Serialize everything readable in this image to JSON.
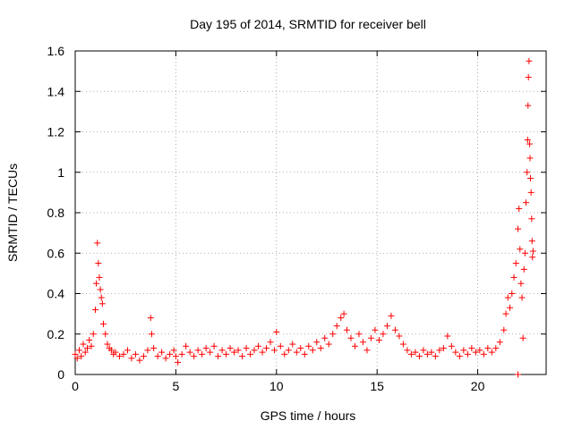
{
  "chart_data": {
    "type": "scatter",
    "title": "Day 195 of 2014, SRMTID for receiver bell",
    "xlabel": "GPS time / hours",
    "ylabel": "SRMTID / TECUs",
    "xlim": [
      0,
      23.4
    ],
    "ylim": [
      0,
      1.6
    ],
    "xticks": [
      0,
      5,
      10,
      15,
      20
    ],
    "xtick_labels": [
      "0",
      "5",
      "10",
      "15",
      "20"
    ],
    "yticks": [
      0,
      0.2,
      0.4,
      0.6,
      0.8,
      1.0,
      1.2,
      1.4,
      1.6
    ],
    "ytick_labels": [
      "0",
      "0.2",
      "0.4",
      "0.6",
      "0.8",
      "1",
      "1.2",
      "1.4",
      "1.6"
    ],
    "grid": true,
    "marker": "+",
    "marker_color": "#ff0000",
    "series": [
      {
        "name": "SRMTID",
        "points": [
          [
            0.0,
            0.1
          ],
          [
            0.1,
            0.08
          ],
          [
            0.2,
            0.12
          ],
          [
            0.3,
            0.09
          ],
          [
            0.4,
            0.15
          ],
          [
            0.5,
            0.11
          ],
          [
            0.6,
            0.13
          ],
          [
            0.7,
            0.17
          ],
          [
            0.8,
            0.14
          ],
          [
            0.9,
            0.2
          ],
          [
            1.0,
            0.32
          ],
          [
            1.05,
            0.45
          ],
          [
            1.1,
            0.65
          ],
          [
            1.15,
            0.55
          ],
          [
            1.2,
            0.48
          ],
          [
            1.25,
            0.42
          ],
          [
            1.3,
            0.38
          ],
          [
            1.35,
            0.35
          ],
          [
            1.4,
            0.25
          ],
          [
            1.5,
            0.2
          ],
          [
            1.6,
            0.15
          ],
          [
            1.7,
            0.13
          ],
          [
            1.8,
            0.12
          ],
          [
            1.9,
            0.1
          ],
          [
            2.0,
            0.11
          ],
          [
            2.2,
            0.09
          ],
          [
            2.4,
            0.1
          ],
          [
            2.6,
            0.12
          ],
          [
            2.8,
            0.08
          ],
          [
            3.0,
            0.1
          ],
          [
            3.2,
            0.07
          ],
          [
            3.4,
            0.09
          ],
          [
            3.6,
            0.12
          ],
          [
            3.75,
            0.28
          ],
          [
            3.8,
            0.2
          ],
          [
            3.9,
            0.13
          ],
          [
            4.1,
            0.09
          ],
          [
            4.3,
            0.11
          ],
          [
            4.5,
            0.08
          ],
          [
            4.7,
            0.1
          ],
          [
            4.9,
            0.12
          ],
          [
            5.0,
            0.09
          ],
          [
            5.1,
            0.06
          ],
          [
            5.3,
            0.1
          ],
          [
            5.5,
            0.14
          ],
          [
            5.7,
            0.11
          ],
          [
            5.9,
            0.09
          ],
          [
            6.1,
            0.12
          ],
          [
            6.3,
            0.1
          ],
          [
            6.5,
            0.13
          ],
          [
            6.7,
            0.11
          ],
          [
            6.9,
            0.14
          ],
          [
            7.1,
            0.09
          ],
          [
            7.3,
            0.12
          ],
          [
            7.5,
            0.1
          ],
          [
            7.7,
            0.13
          ],
          [
            7.9,
            0.11
          ],
          [
            8.1,
            0.12
          ],
          [
            8.3,
            0.09
          ],
          [
            8.5,
            0.13
          ],
          [
            8.7,
            0.1
          ],
          [
            8.9,
            0.12
          ],
          [
            9.1,
            0.14
          ],
          [
            9.3,
            0.11
          ],
          [
            9.5,
            0.13
          ],
          [
            9.7,
            0.16
          ],
          [
            9.9,
            0.12
          ],
          [
            10.0,
            0.21
          ],
          [
            10.2,
            0.14
          ],
          [
            10.4,
            0.1
          ],
          [
            10.6,
            0.12
          ],
          [
            10.8,
            0.15
          ],
          [
            11.0,
            0.11
          ],
          [
            11.2,
            0.13
          ],
          [
            11.4,
            0.1
          ],
          [
            11.6,
            0.14
          ],
          [
            11.8,
            0.12
          ],
          [
            12.0,
            0.16
          ],
          [
            12.2,
            0.13
          ],
          [
            12.4,
            0.18
          ],
          [
            12.6,
            0.15
          ],
          [
            12.8,
            0.2
          ],
          [
            13.0,
            0.24
          ],
          [
            13.2,
            0.28
          ],
          [
            13.35,
            0.3
          ],
          [
            13.5,
            0.22
          ],
          [
            13.7,
            0.18
          ],
          [
            13.9,
            0.14
          ],
          [
            14.1,
            0.2
          ],
          [
            14.3,
            0.16
          ],
          [
            14.5,
            0.12
          ],
          [
            14.7,
            0.18
          ],
          [
            14.9,
            0.22
          ],
          [
            15.1,
            0.17
          ],
          [
            15.3,
            0.2
          ],
          [
            15.5,
            0.24
          ],
          [
            15.7,
            0.29
          ],
          [
            15.9,
            0.22
          ],
          [
            16.1,
            0.19
          ],
          [
            16.3,
            0.15
          ],
          [
            16.5,
            0.12
          ],
          [
            16.7,
            0.1
          ],
          [
            16.9,
            0.11
          ],
          [
            17.1,
            0.09
          ],
          [
            17.3,
            0.12
          ],
          [
            17.5,
            0.1
          ],
          [
            17.7,
            0.11
          ],
          [
            17.9,
            0.09
          ],
          [
            18.1,
            0.12
          ],
          [
            18.3,
            0.13
          ],
          [
            18.5,
            0.19
          ],
          [
            18.7,
            0.14
          ],
          [
            18.9,
            0.11
          ],
          [
            19.1,
            0.09
          ],
          [
            19.3,
            0.12
          ],
          [
            19.5,
            0.1
          ],
          [
            19.7,
            0.13
          ],
          [
            19.9,
            0.11
          ],
          [
            20.1,
            0.12
          ],
          [
            20.3,
            0.1
          ],
          [
            20.5,
            0.13
          ],
          [
            20.7,
            0.11
          ],
          [
            20.9,
            0.13
          ],
          [
            21.1,
            0.16
          ],
          [
            21.3,
            0.22
          ],
          [
            21.4,
            0.3
          ],
          [
            21.5,
            0.38
          ],
          [
            21.6,
            0.33
          ],
          [
            21.7,
            0.4
          ],
          [
            21.8,
            0.48
          ],
          [
            21.9,
            0.55
          ],
          [
            22.0,
            0.72
          ],
          [
            22.05,
            0.82
          ],
          [
            22.1,
            0.62
          ],
          [
            22.15,
            0.45
          ],
          [
            22.2,
            0.38
          ],
          [
            22.25,
            0.18
          ],
          [
            22.3,
            0.52
          ],
          [
            22.35,
            0.6
          ],
          [
            22.4,
            0.85
          ],
          [
            22.45,
            1.0
          ],
          [
            22.48,
            1.16
          ],
          [
            22.5,
            1.33
          ],
          [
            22.52,
            1.47
          ],
          [
            22.55,
            1.55
          ],
          [
            22.58,
            1.14
          ],
          [
            22.6,
            1.07
          ],
          [
            22.62,
            0.97
          ],
          [
            22.65,
            0.9
          ],
          [
            22.68,
            0.77
          ],
          [
            22.7,
            0.66
          ],
          [
            22.72,
            0.58
          ],
          [
            22.75,
            0.61
          ],
          [
            22.0,
            0.0
          ]
        ]
      }
    ]
  }
}
